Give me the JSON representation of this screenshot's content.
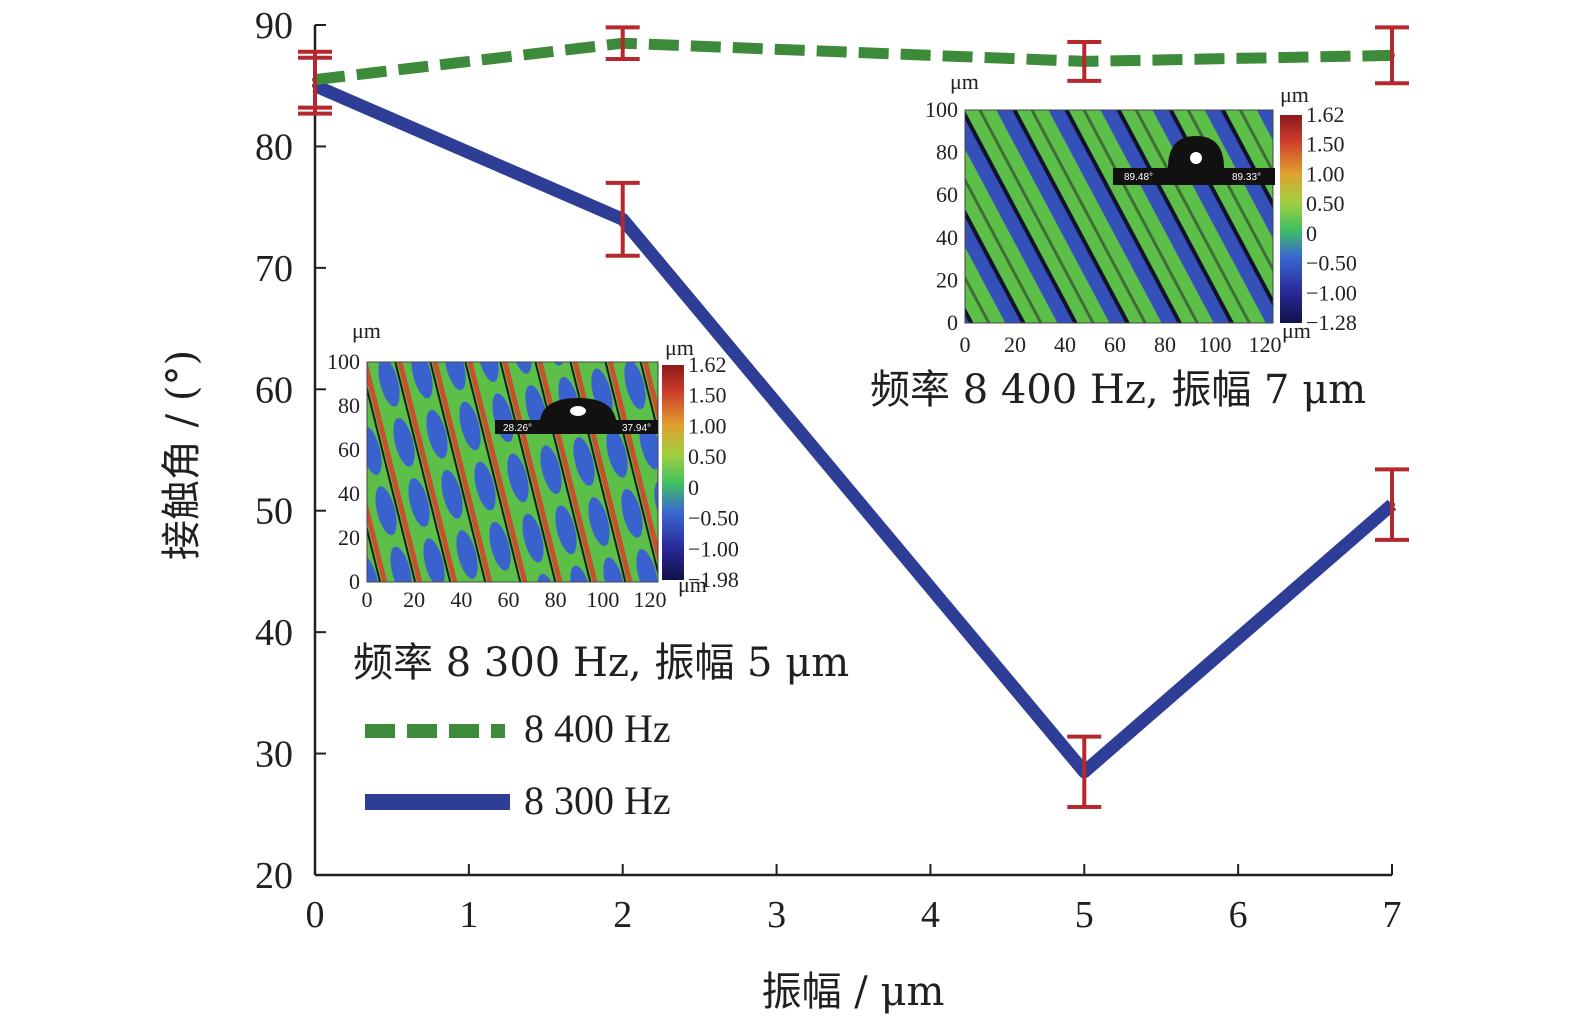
{
  "chart_data": {
    "type": "line",
    "title": "",
    "xlabel": "振幅 / μm",
    "ylabel": "接触角 / (°)",
    "xlim": [
      0,
      7
    ],
    "ylim": [
      20,
      90
    ],
    "xticks": [
      "0",
      "1",
      "2",
      "3",
      "4",
      "5",
      "6",
      "7"
    ],
    "yticks": [
      "20",
      "30",
      "40",
      "50",
      "60",
      "70",
      "80",
      "90"
    ],
    "grid": false,
    "legend_position": "lower-left",
    "series": [
      {
        "name": "8 400 Hz",
        "style": "dashed",
        "color": "#3d8a3a",
        "x": [
          0,
          2,
          5,
          7
        ],
        "y": [
          85.5,
          88.5,
          87.0,
          87.5
        ],
        "err": [
          2.3,
          1.3,
          1.6,
          2.3
        ]
      },
      {
        "name": "8 300 Hz",
        "style": "solid",
        "color": "#2e3d96",
        "x": [
          0,
          2,
          5,
          7
        ],
        "y": [
          85.0,
          74.0,
          28.5,
          50.5
        ],
        "err": [
          2.3,
          3.0,
          2.9,
          2.9
        ]
      }
    ],
    "error_bar_color": "#b5282e",
    "insets": [
      {
        "caption": "频率 8 400 Hz, 振幅 7 μm",
        "unit": "μm",
        "x_ticks": [
          "0",
          "20",
          "40",
          "60",
          "80",
          "100",
          "120"
        ],
        "y_ticks": [
          "0",
          "20",
          "40",
          "60",
          "80",
          "100"
        ],
        "colorbar_ticks": [
          "1.62",
          "1.50",
          "1.00",
          "0.50",
          "0",
          "−0.50",
          "−1.00",
          "−1.28"
        ],
        "drop_angles": [
          "89.48°",
          "89.33°"
        ]
      },
      {
        "caption": "频率 8 300 Hz, 振幅 5 μm",
        "unit": "μm",
        "x_ticks": [
          "0",
          "20",
          "40",
          "60",
          "80",
          "100",
          "120"
        ],
        "y_ticks": [
          "0",
          "20",
          "40",
          "60",
          "80",
          "100"
        ],
        "colorbar_ticks": [
          "1.62",
          "1.50",
          "1.00",
          "0.50",
          "0",
          "−0.50",
          "−1.00",
          "−1.98"
        ],
        "drop_angles": [
          "28.26°",
          "37.94°"
        ]
      }
    ]
  }
}
